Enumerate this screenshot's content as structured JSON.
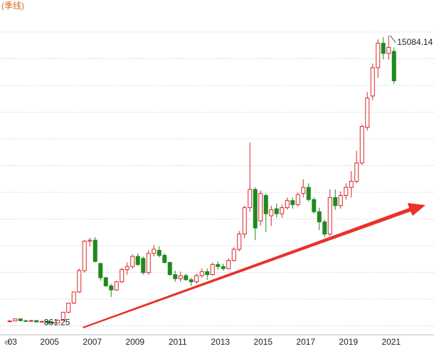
{
  "chart_data": {
    "type": "candlestick",
    "subtitle": "(季线)",
    "categories": [
      null,
      "03",
      null,
      null,
      null,
      null,
      null,
      null,
      "2005",
      null,
      null,
      null,
      null,
      null,
      null,
      null,
      "2007",
      null,
      null,
      null,
      null,
      null,
      null,
      null,
      "2009",
      null,
      null,
      null,
      null,
      null,
      null,
      null,
      "2011",
      null,
      null,
      null,
      null,
      null,
      null,
      null,
      "2013",
      null,
      null,
      null,
      null,
      null,
      null,
      null,
      "2015",
      null,
      null,
      null,
      null,
      null,
      null,
      null,
      "2017",
      null,
      null,
      null,
      null,
      null,
      null,
      null,
      "2019",
      null,
      null,
      null,
      null,
      null,
      null,
      null,
      "2021"
    ],
    "open": [
      1000,
      1020,
      1120,
      1030,
      1010,
      1040,
      970,
      1000,
      950,
      920,
      1050,
      1450,
      1900,
      2450,
      3500,
      4950,
      5000,
      3850,
      3150,
      2750,
      2550,
      2950,
      3550,
      3700,
      4200,
      4100,
      3400,
      4350,
      4500,
      4250,
      3900,
      3300,
      3100,
      3250,
      3050,
      2950,
      3250,
      3450,
      3300,
      3800,
      3700,
      3600,
      4000,
      4550,
      5300,
      6600,
      7500,
      5950,
      7200,
      6200,
      6550,
      6300,
      6600,
      6950,
      6750,
      7300,
      7600,
      7000,
      6400,
      5900,
      5300,
      7100,
      6700,
      7200,
      7600,
      7900,
      8800,
      10556,
      12100,
      13500,
      14700,
      14200,
      14300
    ],
    "high": [
      1050,
      1150,
      1150,
      1080,
      1080,
      1060,
      1020,
      1030,
      1000,
      1100,
      1450,
      1900,
      2450,
      3600,
      5000,
      5120,
      5150,
      3900,
      3200,
      2850,
      3000,
      3650,
      3900,
      4300,
      4350,
      4200,
      4500,
      4750,
      4700,
      4350,
      3950,
      3500,
      3450,
      3350,
      3150,
      3350,
      3600,
      3600,
      3900,
      3950,
      3850,
      4100,
      4650,
      5450,
      6700,
      9800,
      7600,
      7450,
      7300,
      6700,
      6800,
      6750,
      7100,
      7100,
      7350,
      8000,
      7800,
      7100,
      6600,
      6000,
      7500,
      7500,
      7400,
      7800,
      8400,
      9400,
      10700,
      12300,
      13700,
      14900,
      15000,
      15084.14,
      14500
    ],
    "low": [
      960,
      1000,
      1000,
      980,
      990,
      950,
      940,
      920,
      861.25,
      900,
      1030,
      1400,
      1850,
      2400,
      3400,
      4700,
      3900,
      3000,
      2700,
      2200,
      2500,
      2900,
      3300,
      3600,
      3700,
      3300,
      3300,
      4200,
      4150,
      3850,
      3250,
      2950,
      2950,
      3000,
      2750,
      2850,
      3150,
      3050,
      3250,
      3550,
      3500,
      3550,
      3950,
      4450,
      5100,
      6400,
      5000,
      5700,
      5400,
      5700,
      6100,
      6100,
      6500,
      6550,
      6650,
      7100,
      6900,
      6300,
      5500,
      5150,
      5200,
      6500,
      6550,
      7000,
      7100,
      7800,
      8700,
      10400,
      11900,
      13000,
      13900,
      13900,
      12700
    ],
    "close": [
      1020,
      1120,
      1030,
      1010,
      1040,
      970,
      1000,
      950,
      920,
      1050,
      1450,
      1900,
      2450,
      3500,
      4950,
      5000,
      3950,
      3150,
      2750,
      2550,
      2950,
      3550,
      3700,
      4200,
      3800,
      3400,
      4350,
      4550,
      4250,
      3900,
      3300,
      3100,
      3250,
      3050,
      2950,
      3250,
      3450,
      3300,
      3800,
      3700,
      3600,
      4000,
      4550,
      5300,
      6600,
      7500,
      5600,
      7300,
      6300,
      6500,
      6300,
      6600,
      6950,
      6750,
      7250,
      7600,
      7000,
      6400,
      5900,
      5300,
      7100,
      6700,
      7200,
      7600,
      7900,
      8800,
      10600,
      12000,
      13500,
      14700,
      14200,
      14500,
      12850
    ],
    "up_color": "#d9262c",
    "down_color": "#1e8a1e",
    "ylim": [
      340,
      16130
    ],
    "grid": true
  }
}
